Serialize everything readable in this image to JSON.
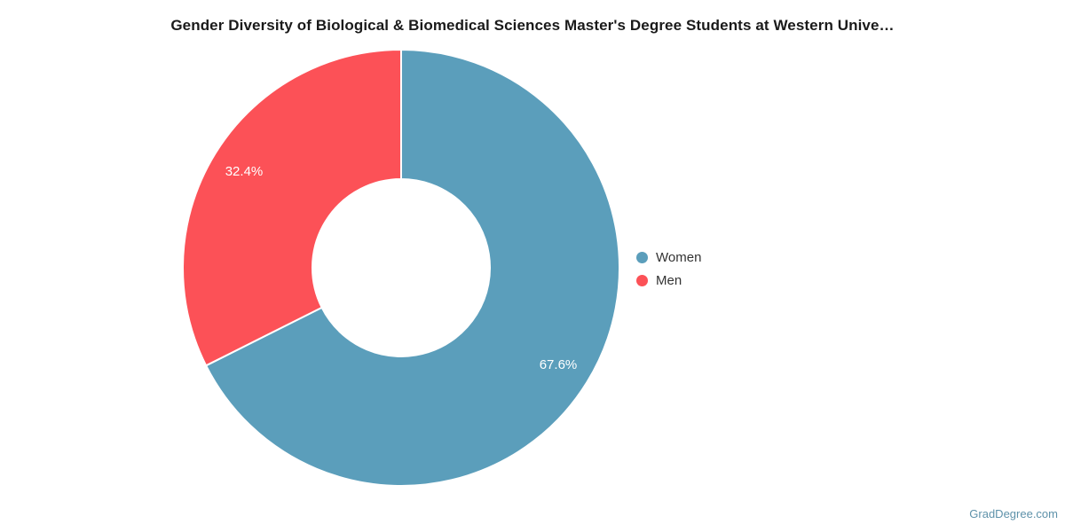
{
  "title": "Gender Diversity of Biological & Biomedical Sciences Master's Degree Students at Western Unive…",
  "watermark": "GradDegree.com",
  "chart_data": {
    "type": "pie",
    "subtype": "donut",
    "title": "Gender Diversity of Biological & Biomedical Sciences Master's Degree Students at Western Unive…",
    "categories": [
      "Women",
      "Men"
    ],
    "values": [
      67.6,
      32.4
    ],
    "labels": [
      "67.6%",
      "32.4%"
    ],
    "colors": [
      "#5B9EBB",
      "#FC5157"
    ],
    "label_color": "#ffffff",
    "start_angle_deg": 0,
    "direction": "clockwise",
    "legend_position": "right",
    "legend_text_color": "#333333",
    "background": "#ffffff"
  }
}
